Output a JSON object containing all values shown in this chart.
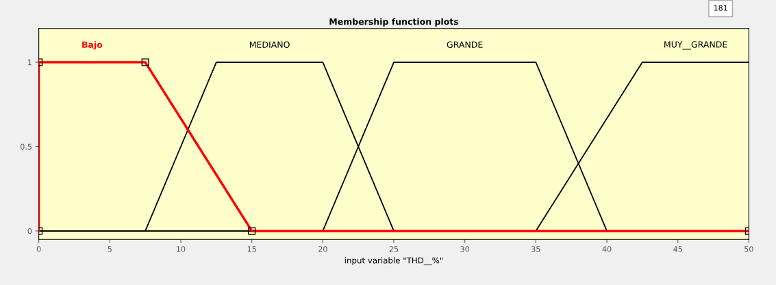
{
  "chart_data": {
    "type": "line",
    "title": "Membership function plots",
    "xlabel": "input variable \"THD__%\"",
    "xlim": [
      0,
      50
    ],
    "ylim": [
      -0.05,
      1.2
    ],
    "xticks": [
      0,
      5,
      10,
      15,
      20,
      25,
      30,
      35,
      40,
      45,
      50
    ],
    "yticks": [
      0,
      0.5,
      1
    ],
    "grid": false,
    "legend": false,
    "annotations": [
      "181"
    ],
    "series": [
      {
        "name": "MEDIANO",
        "color": "#000000",
        "x": [
          0,
          7.5,
          12.5,
          20,
          25,
          50
        ],
        "values": [
          0,
          0,
          1,
          1,
          0,
          0
        ],
        "marker": "none"
      },
      {
        "name": "GRANDE",
        "color": "#000000",
        "x": [
          0,
          20,
          25,
          35,
          40,
          50
        ],
        "values": [
          0,
          0,
          1,
          1,
          0,
          0
        ],
        "marker": "none"
      },
      {
        "name": "MUY__GRANDE",
        "color": "#000000",
        "x": [
          0,
          35,
          42.5,
          50
        ],
        "values": [
          0,
          0,
          1,
          1
        ],
        "marker": "none"
      },
      {
        "name": "Bajo",
        "color": "#ff0000",
        "x": [
          0,
          0,
          7.5,
          15,
          50
        ],
        "values": [
          0,
          1,
          1,
          0,
          0
        ],
        "marker": "square"
      }
    ]
  }
}
